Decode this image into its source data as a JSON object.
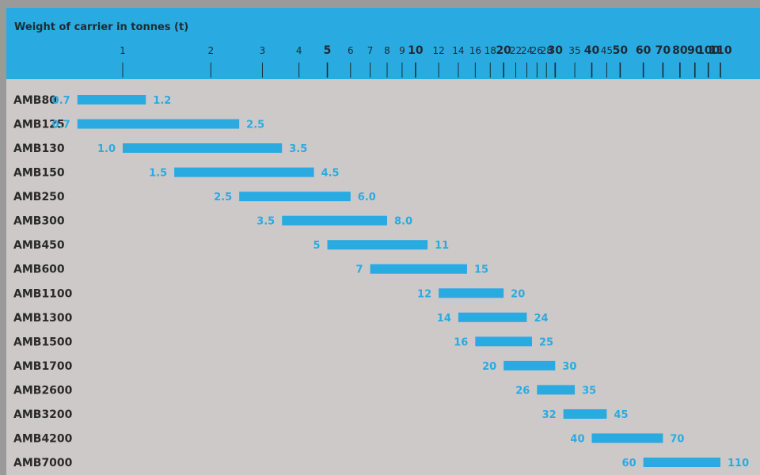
{
  "colors": {
    "header": "#29abe2",
    "panel": "#cdc9c8",
    "bar": "#29abe2",
    "label_text": "#29abe2",
    "axis_text": "#1f2a33",
    "tick_line": "#1f2a33"
  },
  "chart_data": {
    "type": "bar",
    "orientation": "horizontal-range",
    "title": "Weight of carrier in tonnes (t)",
    "x_scale": "log",
    "x_axis_position": "top",
    "grid": false,
    "legend": "none",
    "xlim": [
      1,
      110
    ],
    "ticks": [
      {
        "value": 1,
        "label": "1",
        "major": false
      },
      {
        "value": 2,
        "label": "2",
        "major": false
      },
      {
        "value": 3,
        "label": "3",
        "major": false
      },
      {
        "value": 4,
        "label": "4",
        "major": false
      },
      {
        "value": 5,
        "label": "5",
        "major": true
      },
      {
        "value": 6,
        "label": "6",
        "major": false
      },
      {
        "value": 7,
        "label": "7",
        "major": false
      },
      {
        "value": 8,
        "label": "8",
        "major": false
      },
      {
        "value": 9,
        "label": "9",
        "major": false
      },
      {
        "value": 10,
        "label": "10",
        "major": true
      },
      {
        "value": 12,
        "label": "12",
        "major": false
      },
      {
        "value": 14,
        "label": "14",
        "major": false
      },
      {
        "value": 16,
        "label": "16",
        "major": false
      },
      {
        "value": 18,
        "label": "18",
        "major": false
      },
      {
        "value": 20,
        "label": "20",
        "major": true
      },
      {
        "value": 22,
        "label": "22",
        "major": false
      },
      {
        "value": 24,
        "label": "24",
        "major": false
      },
      {
        "value": 26,
        "label": "26",
        "major": false
      },
      {
        "value": 28,
        "label": "28",
        "major": false
      },
      {
        "value": 30,
        "label": "30",
        "major": true
      },
      {
        "value": 35,
        "label": "35",
        "major": false
      },
      {
        "value": 40,
        "label": "40",
        "major": true
      },
      {
        "value": 45,
        "label": "45",
        "major": false
      },
      {
        "value": 50,
        "label": "50",
        "major": true
      },
      {
        "value": 60,
        "label": "60",
        "major": true
      },
      {
        "value": 70,
        "label": "70",
        "major": true
      },
      {
        "value": 80,
        "label": "80",
        "major": true
      },
      {
        "value": 90,
        "label": "90",
        "major": true
      },
      {
        "value": 100,
        "label": "100",
        "major": true
      },
      {
        "value": 110,
        "label": "110",
        "major": true
      }
    ],
    "rows": [
      {
        "name": "AMB80",
        "min": 0.7,
        "max": 1.2,
        "min_label": "0.7",
        "max_label": "1.2"
      },
      {
        "name": "AMB125",
        "min": 0.7,
        "max": 2.5,
        "min_label": "0.7",
        "max_label": "2.5"
      },
      {
        "name": "AMB130",
        "min": 1.0,
        "max": 3.5,
        "min_label": "1.0",
        "max_label": "3.5"
      },
      {
        "name": "AMB150",
        "min": 1.5,
        "max": 4.5,
        "min_label": "1.5",
        "max_label": "4.5"
      },
      {
        "name": "AMB250",
        "min": 2.5,
        "max": 6.0,
        "min_label": "2.5",
        "max_label": "6.0"
      },
      {
        "name": "AMB300",
        "min": 3.5,
        "max": 8.0,
        "min_label": "3.5",
        "max_label": "8.0"
      },
      {
        "name": "AMB450",
        "min": 5,
        "max": 11,
        "min_label": "5",
        "max_label": "11"
      },
      {
        "name": "AMB600",
        "min": 7,
        "max": 15,
        "min_label": "7",
        "max_label": "15"
      },
      {
        "name": "AMB1100",
        "min": 12,
        "max": 20,
        "min_label": "12",
        "max_label": "20"
      },
      {
        "name": "AMB1300",
        "min": 14,
        "max": 24,
        "min_label": "14",
        "max_label": "24"
      },
      {
        "name": "AMB1500",
        "min": 16,
        "max": 25,
        "min_label": "16",
        "max_label": "25"
      },
      {
        "name": "AMB1700",
        "min": 20,
        "max": 30,
        "min_label": "20",
        "max_label": "30"
      },
      {
        "name": "AMB2600",
        "min": 26,
        "max": 35,
        "min_label": "26",
        "max_label": "35"
      },
      {
        "name": "AMB3200",
        "min": 32,
        "max": 45,
        "min_label": "32",
        "max_label": "45"
      },
      {
        "name": "AMB4200",
        "min": 40,
        "max": 70,
        "min_label": "40",
        "max_label": "70"
      },
      {
        "name": "AMB7000",
        "min": 60,
        "max": 110,
        "min_label": "60",
        "max_label": "110"
      }
    ]
  }
}
